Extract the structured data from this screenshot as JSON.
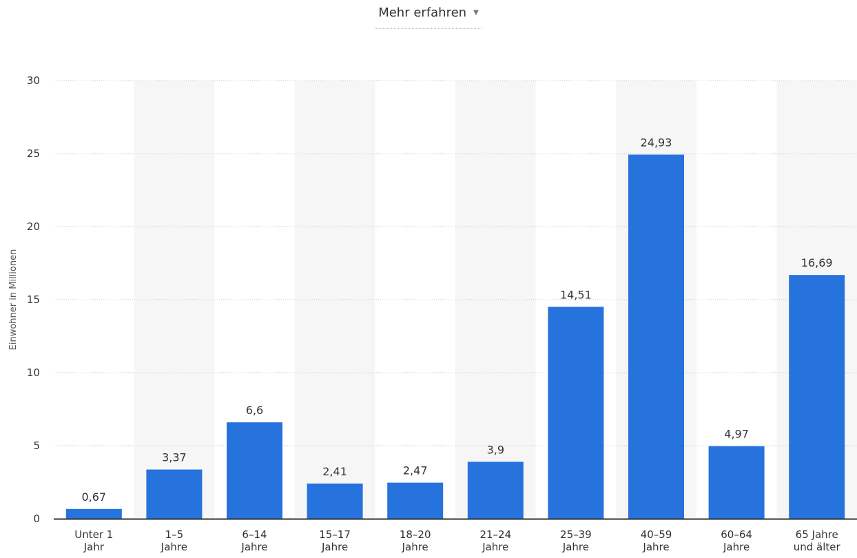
{
  "header": {
    "link_label": "Mehr erfahren",
    "caret": "▼"
  },
  "chart_data": {
    "type": "bar",
    "categories": [
      [
        "Unter 1",
        "Jahr"
      ],
      [
        "1–5",
        "Jahre"
      ],
      [
        "6–14",
        "Jahre"
      ],
      [
        "15–17",
        "Jahre"
      ],
      [
        "18–20",
        "Jahre"
      ],
      [
        "21–24",
        "Jahre"
      ],
      [
        "25–39",
        "Jahre"
      ],
      [
        "40–59",
        "Jahre"
      ],
      [
        "60–64",
        "Jahre"
      ],
      [
        "65 Jahre",
        "und älter"
      ]
    ],
    "values": [
      0.67,
      3.37,
      6.6,
      2.41,
      2.47,
      3.9,
      14.51,
      24.93,
      4.97,
      16.69
    ],
    "value_labels": [
      "0,67",
      "3,37",
      "6,6",
      "2,41",
      "2,47",
      "3,9",
      "14,51",
      "24,93",
      "4,97",
      "16,69"
    ],
    "ylabel": "Einwohner in Millionen",
    "ylim": [
      0,
      30
    ],
    "yticks": [
      0,
      5,
      10,
      15,
      20,
      25,
      30
    ],
    "grid": true,
    "alternating_band_background": true,
    "colors": {
      "bar": "#2673dd",
      "band": "#f6f6f6",
      "grid": "#c8c8c8",
      "axis": "#333333"
    }
  }
}
